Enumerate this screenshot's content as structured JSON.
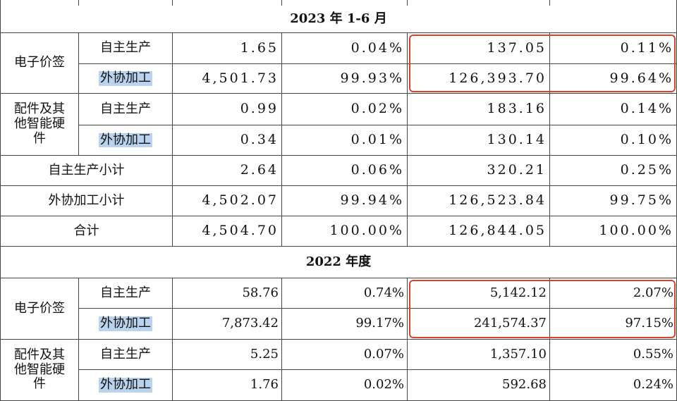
{
  "sections": [
    {
      "title": "2023 年 1-6 月",
      "groups": [
        {
          "label": "电子价签",
          "rows": [
            {
              "mode": "自主生产",
              "values": [
                "1.65",
                "0.04%",
                "137.05",
                "0.11%"
              ]
            },
            {
              "mode": "外协加工",
              "values": [
                "4,501.73",
                "99.93%",
                "126,393.70",
                "99.64%"
              ]
            }
          ]
        },
        {
          "label": "配件及其他智能硬件",
          "rows": [
            {
              "mode": "自主生产",
              "values": [
                "0.99",
                "0.02%",
                "183.16",
                "0.14%"
              ]
            },
            {
              "mode": "外协加工",
              "values": [
                "0.34",
                "0.01%",
                "130.14",
                "0.10%"
              ]
            }
          ]
        }
      ],
      "totals": [
        {
          "label": "自主生产小计",
          "values": [
            "2.64",
            "0.06%",
            "320.21",
            "0.25%"
          ]
        },
        {
          "label": "外协加工小计",
          "values": [
            "4,502.07",
            "99.94%",
            "126,523.84",
            "99.75%"
          ]
        },
        {
          "label": "合计",
          "values": [
            "4,504.70",
            "100.00%",
            "126,844.05",
            "100.00%"
          ]
        }
      ]
    },
    {
      "title": "2022 年度",
      "groups": [
        {
          "label": "电子价签",
          "rows": [
            {
              "mode": "自主生产",
              "values": [
                "58.76",
                "0.74%",
                "5,142.12",
                "2.07%"
              ]
            },
            {
              "mode": "外协加工",
              "values": [
                "7,873.42",
                "99.17%",
                "241,574.37",
                "97.15%"
              ]
            }
          ]
        },
        {
          "label": "配件及其他智能硬件",
          "rows": [
            {
              "mode": "自主生产",
              "values": [
                "5.25",
                "0.07%",
                "1,357.10",
                "0.55%"
              ]
            },
            {
              "mode": "外协加工",
              "values": [
                "1.76",
                "0.02%",
                "592.68",
                "0.24%"
              ]
            }
          ]
        }
      ],
      "totals": []
    }
  ]
}
